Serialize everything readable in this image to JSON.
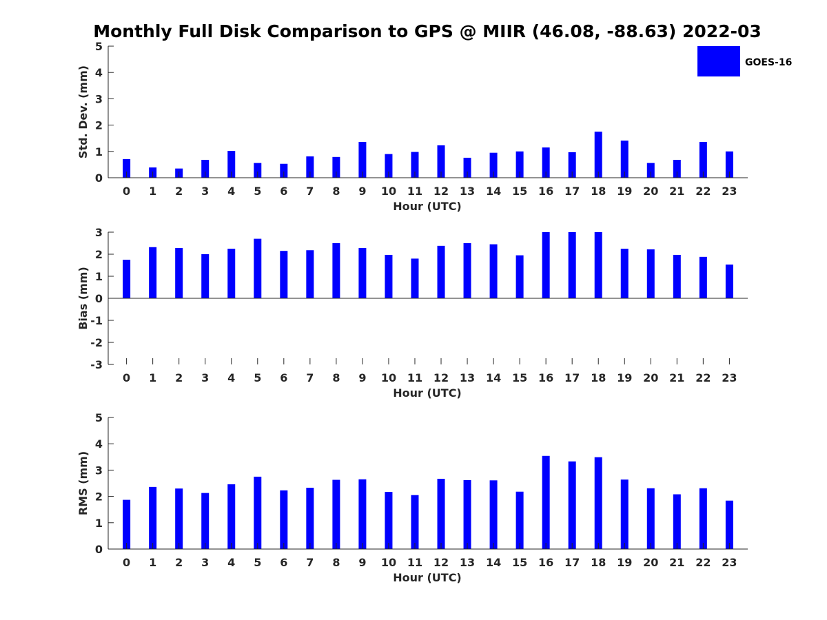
{
  "title": "Monthly Full Disk Comparison to GPS @ MIIR (46.08, -88.63) 2022-03",
  "legend": {
    "label": "GOES-16",
    "color": "#0000ff"
  },
  "bar_color": "#0000ff",
  "chart_data": [
    {
      "type": "bar",
      "name": "std-dev",
      "ylabel": "Std. Dev. (mm)",
      "xlabel": "Hour (UTC)",
      "ylim": [
        0,
        5
      ],
      "yticks": [
        0,
        1,
        2,
        3,
        4,
        5
      ],
      "categories": [
        "0",
        "1",
        "2",
        "3",
        "4",
        "5",
        "6",
        "7",
        "8",
        "9",
        "10",
        "11",
        "12",
        "13",
        "14",
        "15",
        "16",
        "17",
        "18",
        "19",
        "20",
        "21",
        "22",
        "23"
      ],
      "series": [
        {
          "name": "GOES-16",
          "values": [
            0.71,
            0.39,
            0.35,
            0.68,
            1.02,
            0.56,
            0.53,
            0.81,
            0.79,
            1.36,
            0.9,
            0.98,
            1.23,
            0.76,
            0.95,
            1.0,
            1.15,
            0.97,
            1.75,
            1.41,
            0.56,
            0.68,
            1.36,
            1.0
          ]
        }
      ]
    },
    {
      "type": "bar",
      "name": "bias",
      "ylabel": "Bias (mm)",
      "xlabel": "Hour (UTC)",
      "ylim": [
        -3,
        3
      ],
      "yticks": [
        -3,
        -2,
        -1,
        0,
        1,
        2,
        3
      ],
      "categories": [
        "0",
        "1",
        "2",
        "3",
        "4",
        "5",
        "6",
        "7",
        "8",
        "9",
        "10",
        "11",
        "12",
        "13",
        "14",
        "15",
        "16",
        "17",
        "18",
        "19",
        "20",
        "21",
        "22",
        "23"
      ],
      "series": [
        {
          "name": "GOES-16",
          "values": [
            1.75,
            2.32,
            2.28,
            2.0,
            2.25,
            2.7,
            2.15,
            2.18,
            2.5,
            2.28,
            1.97,
            1.8,
            2.38,
            2.5,
            2.45,
            1.95,
            3.0,
            3.0,
            3.0,
            2.25,
            2.22,
            1.97,
            1.88,
            1.53
          ]
        }
      ]
    },
    {
      "type": "bar",
      "name": "rms",
      "ylabel": "RMS (mm)",
      "xlabel": "Hour (UTC)",
      "ylim": [
        0,
        5
      ],
      "yticks": [
        0,
        1,
        2,
        3,
        4,
        5
      ],
      "categories": [
        "0",
        "1",
        "2",
        "3",
        "4",
        "5",
        "6",
        "7",
        "8",
        "9",
        "10",
        "11",
        "12",
        "13",
        "14",
        "15",
        "16",
        "17",
        "18",
        "19",
        "20",
        "21",
        "22",
        "23"
      ],
      "series": [
        {
          "name": "GOES-16",
          "values": [
            1.87,
            2.36,
            2.3,
            2.13,
            2.46,
            2.75,
            2.23,
            2.33,
            2.63,
            2.65,
            2.17,
            2.05,
            2.67,
            2.62,
            2.61,
            2.18,
            3.54,
            3.33,
            3.49,
            2.64,
            2.31,
            2.08,
            2.31,
            1.84
          ]
        }
      ]
    }
  ]
}
